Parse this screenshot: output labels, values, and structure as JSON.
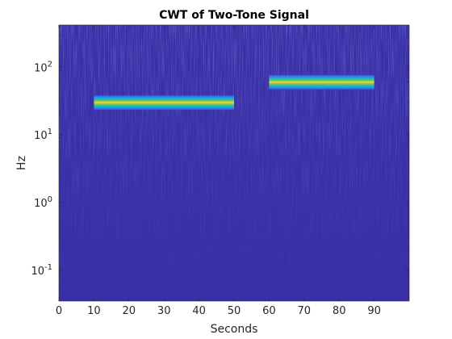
{
  "chart_data": {
    "type": "heatmap",
    "title": "CWT of Two-Tone Signal",
    "xlabel": "Seconds",
    "ylabel": "Hz",
    "xlim": [
      0,
      100
    ],
    "ylim": [
      0.035,
      420
    ],
    "yscale": "log",
    "grid": false,
    "xticks": [
      0,
      10,
      20,
      30,
      40,
      50,
      60,
      70,
      80,
      90
    ],
    "xtick_labels": [
      "0",
      "10",
      "20",
      "30",
      "40",
      "50",
      "60",
      "70",
      "80",
      "90"
    ],
    "yticks": [
      {
        "value": 100,
        "base": "10",
        "exp": "2"
      },
      {
        "value": 10,
        "base": "10",
        "exp": "1"
      },
      {
        "value": 1,
        "base": "10",
        "exp": "0"
      },
      {
        "value": 0.1,
        "base": "10",
        "exp": "-1"
      }
    ],
    "background_color": "#3a2fa6",
    "tones": [
      {
        "start": 10,
        "end": 50,
        "frequency": 30
      },
      {
        "start": 60,
        "end": 90,
        "frequency": 60
      }
    ]
  }
}
